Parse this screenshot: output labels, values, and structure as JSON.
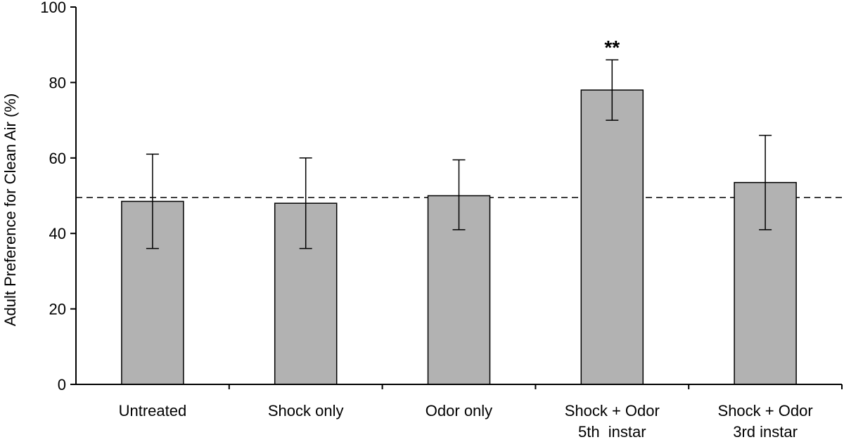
{
  "chart_data": {
    "type": "bar",
    "categories": [
      [
        "Untreated"
      ],
      [
        "Shock only"
      ],
      [
        "Odor only"
      ],
      [
        "Shock + Odor",
        "5th  instar"
      ],
      [
        "Shock + Odor",
        "3rd instar"
      ]
    ],
    "values": [
      48.5,
      48,
      50,
      78,
      53.5
    ],
    "error_low": [
      36,
      36,
      41,
      70,
      41
    ],
    "error_high": [
      61,
      60,
      59.5,
      86,
      66
    ],
    "annotations": [
      "",
      "",
      "",
      "**",
      ""
    ],
    "reference_line": 49.5,
    "ylabel": "Adult Preference for Clean Air (%)",
    "xlabel": "",
    "title": "",
    "ylim": [
      0,
      100
    ],
    "yticks": [
      0,
      20,
      40,
      60,
      80,
      100
    ],
    "grid": false,
    "colors": {
      "bar_fill": "#b2b2b2",
      "bar_stroke": "#000000",
      "axis": "#000000"
    }
  }
}
